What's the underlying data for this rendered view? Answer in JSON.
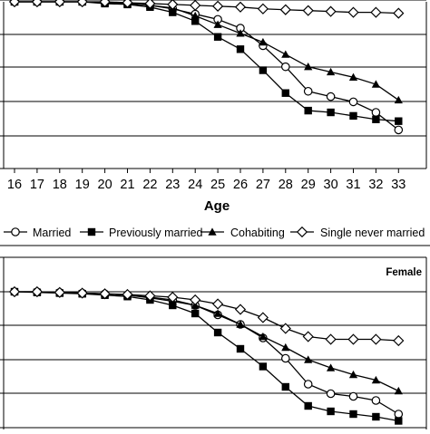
{
  "chart_data": [
    {
      "type": "line",
      "title": "",
      "xlabel": "Age",
      "ylabel": "",
      "categories": [
        "16",
        "17",
        "18",
        "19",
        "20",
        "21",
        "22",
        "23",
        "24",
        "25",
        "26",
        "27",
        "28",
        "29",
        "30",
        "31",
        "32",
        "33"
      ],
      "ylim": [
        0,
        1.0
      ],
      "grid": true,
      "series": [
        {
          "name": "Married",
          "marker": "circle",
          "values": [
            1.0,
            1.0,
            1.0,
            1.0,
            0.995,
            0.99,
            0.98,
            0.96,
            0.93,
            0.9,
            0.85,
            0.75,
            0.63,
            0.49,
            0.46,
            0.43,
            0.37,
            0.27
          ]
        },
        {
          "name": "Previously married",
          "marker": "square",
          "values": [
            1.0,
            1.0,
            1.0,
            1.0,
            0.99,
            0.985,
            0.97,
            0.94,
            0.89,
            0.8,
            0.73,
            0.61,
            0.48,
            0.38,
            0.37,
            0.35,
            0.33,
            0.32
          ]
        },
        {
          "name": "Cohabiting",
          "marker": "triangle",
          "values": [
            1.0,
            1.0,
            1.0,
            1.0,
            0.995,
            0.99,
            0.98,
            0.965,
            0.92,
            0.87,
            0.82,
            0.77,
            0.7,
            0.63,
            0.6,
            0.57,
            0.53,
            0.44
          ]
        },
        {
          "name": "Single never married",
          "marker": "diamond",
          "values": [
            1.0,
            1.0,
            1.0,
            1.0,
            1.0,
            0.995,
            0.99,
            0.985,
            0.98,
            0.975,
            0.97,
            0.96,
            0.955,
            0.95,
            0.945,
            0.94,
            0.94,
            0.935
          ]
        }
      ]
    },
    {
      "type": "line",
      "title": "Female",
      "xlabel": "",
      "ylabel": "",
      "categories": [
        "16",
        "17",
        "18",
        "19",
        "20",
        "21",
        "22",
        "23",
        "24",
        "25",
        "26",
        "27",
        "28",
        "29",
        "30",
        "31",
        "32",
        "33"
      ],
      "ylim": [
        0,
        1.0
      ],
      "grid": true,
      "series": [
        {
          "name": "Married",
          "marker": "circle",
          "values": [
            1.0,
            1.0,
            0.995,
            0.99,
            0.985,
            0.975,
            0.96,
            0.94,
            0.9,
            0.83,
            0.76,
            0.66,
            0.51,
            0.32,
            0.25,
            0.23,
            0.2,
            0.1
          ]
        },
        {
          "name": "Previously married",
          "marker": "square",
          "values": [
            1.0,
            0.995,
            0.99,
            0.985,
            0.975,
            0.965,
            0.94,
            0.9,
            0.84,
            0.7,
            0.58,
            0.45,
            0.3,
            0.16,
            0.12,
            0.1,
            0.08,
            0.05
          ]
        },
        {
          "name": "Cohabiting",
          "marker": "triangle",
          "values": [
            1.0,
            1.0,
            0.995,
            0.99,
            0.985,
            0.975,
            0.955,
            0.93,
            0.9,
            0.84,
            0.76,
            0.67,
            0.59,
            0.5,
            0.44,
            0.39,
            0.35,
            0.27
          ]
        },
        {
          "name": "Single never married",
          "marker": "diamond",
          "values": [
            1.0,
            1.0,
            0.995,
            0.99,
            0.985,
            0.98,
            0.97,
            0.96,
            0.94,
            0.91,
            0.87,
            0.81,
            0.73,
            0.67,
            0.65,
            0.65,
            0.65,
            0.64
          ]
        }
      ]
    }
  ],
  "legend": {
    "items": [
      {
        "label": "Married",
        "marker": "circle"
      },
      {
        "label": "Previously married",
        "marker": "square"
      },
      {
        "label": "Cohabiting",
        "marker": "triangle"
      },
      {
        "label": "Single never married",
        "marker": "diamond"
      }
    ]
  },
  "colors": {
    "line": "#000000",
    "grid": "#000000",
    "background": "#ffffff"
  }
}
